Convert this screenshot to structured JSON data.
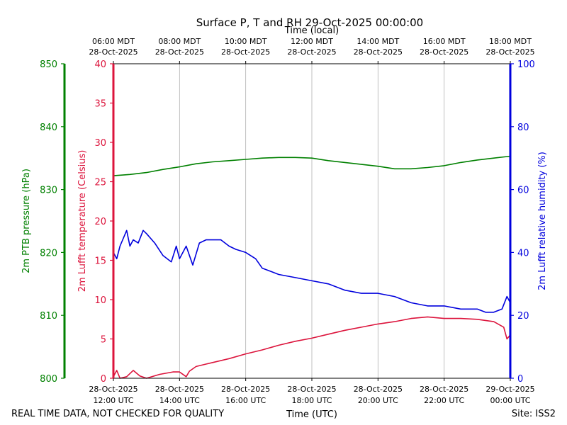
{
  "chart_data": {
    "type": "line",
    "title": "Surface P, T and RH 29-Oct-2025 00:00:00",
    "top_axis_label": "Time (local)",
    "bottom_axis_label": "Time (UTC)",
    "footer_left": "REAL TIME DATA, NOT CHECKED FOR QUALITY",
    "footer_right": "Site: ISS2",
    "x_range_hours_utc": [
      12,
      24
    ],
    "x_ticks": [
      {
        "hour": 12,
        "utc_date": "28-Oct-2025",
        "utc_time": "12:00 UTC",
        "local_time": "06:00 MDT",
        "local_date": "28-Oct-2025"
      },
      {
        "hour": 14,
        "utc_date": "28-Oct-2025",
        "utc_time": "14:00 UTC",
        "local_time": "08:00 MDT",
        "local_date": "28-Oct-2025"
      },
      {
        "hour": 16,
        "utc_date": "28-Oct-2025",
        "utc_time": "16:00 UTC",
        "local_time": "10:00 MDT",
        "local_date": "28-Oct-2025"
      },
      {
        "hour": 18,
        "utc_date": "28-Oct-2025",
        "utc_time": "18:00 UTC",
        "local_time": "12:00 MDT",
        "local_date": "28-Oct-2025"
      },
      {
        "hour": 20,
        "utc_date": "28-Oct-2025",
        "utc_time": "20:00 UTC",
        "local_time": "14:00 MDT",
        "local_date": "28-Oct-2025"
      },
      {
        "hour": 22,
        "utc_date": "28-Oct-2025",
        "utc_time": "22:00 UTC",
        "local_time": "16:00 MDT",
        "local_date": "28-Oct-2025"
      },
      {
        "hour": 24,
        "utc_date": "29-Oct-2025",
        "utc_time": "00:00 UTC",
        "local_time": "18:00 MDT",
        "local_date": "28-Oct-2025"
      }
    ],
    "grid": "vertical",
    "series": [
      {
        "name": "2m PTB pressure",
        "axis_label": "2m PTB pressure (hPa)",
        "color": "#008000",
        "ylim": [
          800,
          850
        ],
        "yticks": [
          800,
          810,
          820,
          830,
          840,
          850
        ],
        "x": [
          12.0,
          12.5,
          13.0,
          13.5,
          14.0,
          14.5,
          15.0,
          15.5,
          16.0,
          16.5,
          17.0,
          17.5,
          18.0,
          18.5,
          19.0,
          19.5,
          20.0,
          20.5,
          21.0,
          21.5,
          22.0,
          22.5,
          23.0,
          23.5,
          24.0
        ],
        "values": [
          832.2,
          832.4,
          832.7,
          833.2,
          833.6,
          834.1,
          834.4,
          834.6,
          834.8,
          835.0,
          835.1,
          835.1,
          835.0,
          834.6,
          834.3,
          834.0,
          833.7,
          833.3,
          833.3,
          833.5,
          833.8,
          834.3,
          834.7,
          835.0,
          835.3
        ]
      },
      {
        "name": "2m Lufft temperature",
        "axis_label": "2m Lufft temperature (Celsius)",
        "color": "#dc143c",
        "ylim": [
          0,
          40
        ],
        "yticks": [
          0,
          5,
          10,
          15,
          20,
          25,
          30,
          35,
          40
        ],
        "x": [
          12.0,
          12.1,
          12.2,
          12.4,
          12.6,
          12.8,
          13.0,
          13.4,
          13.8,
          14.0,
          14.2,
          14.3,
          14.5,
          14.8,
          15.0,
          15.5,
          16.0,
          16.5,
          17.0,
          17.5,
          18.0,
          18.5,
          19.0,
          19.5,
          20.0,
          20.5,
          21.0,
          21.5,
          22.0,
          22.5,
          23.0,
          23.5,
          23.8,
          23.9,
          24.0
        ],
        "values": [
          0.2,
          1.0,
          0.0,
          0.2,
          1.0,
          0.3,
          0.0,
          0.5,
          0.8,
          0.8,
          0.2,
          0.9,
          1.5,
          1.8,
          2.0,
          2.5,
          3.1,
          3.6,
          4.2,
          4.7,
          5.1,
          5.6,
          6.1,
          6.5,
          6.9,
          7.2,
          7.6,
          7.8,
          7.6,
          7.6,
          7.5,
          7.2,
          6.5,
          5.0,
          5.5
        ]
      },
      {
        "name": "2m Lufft relative humidity",
        "axis_label": "2m Lufft relative humidity (%)",
        "color": "#0000dd",
        "ylim": [
          0,
          100
        ],
        "yticks": [
          0,
          20,
          40,
          60,
          80,
          100
        ],
        "x": [
          12.0,
          12.1,
          12.2,
          12.4,
          12.5,
          12.6,
          12.75,
          12.9,
          13.0,
          13.25,
          13.5,
          13.75,
          13.9,
          14.0,
          14.2,
          14.4,
          14.6,
          14.8,
          15.0,
          15.25,
          15.5,
          15.7,
          16.0,
          16.3,
          16.5,
          16.75,
          17.0,
          17.5,
          18.0,
          18.5,
          19.0,
          19.5,
          20.0,
          20.5,
          21.0,
          21.5,
          22.0,
          22.5,
          23.0,
          23.25,
          23.5,
          23.75,
          23.9,
          24.0
        ],
        "values": [
          40,
          38,
          42,
          47,
          42,
          44,
          43,
          47,
          46,
          43,
          39,
          37,
          42,
          38,
          42,
          36,
          43,
          44,
          44,
          44,
          42,
          41,
          40,
          38,
          35,
          34,
          33,
          32,
          31,
          30,
          28,
          27,
          27,
          26,
          24,
          23,
          23,
          22,
          22,
          21,
          21,
          22,
          26,
          24
        ]
      }
    ]
  }
}
